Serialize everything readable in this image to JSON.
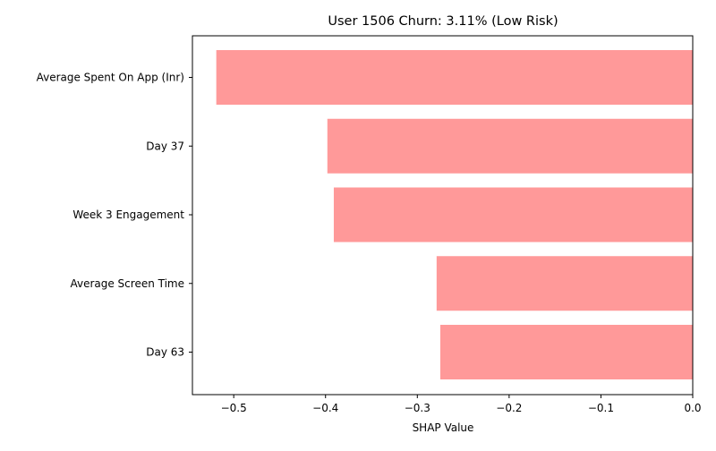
{
  "chart_data": {
    "type": "bar",
    "orientation": "horizontal",
    "title": "User 1506 Churn: 3.11% (Low Risk)",
    "xlabel": "SHAP Value",
    "ylabel": "",
    "categories": [
      "Average Spent On App (Inr)",
      "Day 37",
      "Week 3 Engagement",
      "Average Screen Time",
      "Day 63"
    ],
    "values": [
      -0.519,
      -0.398,
      -0.391,
      -0.279,
      -0.275
    ],
    "xlim": [
      -0.545,
      0.0
    ],
    "xticks": [
      -0.5,
      -0.4,
      -0.3,
      -0.2,
      -0.1,
      0.0
    ],
    "xtick_labels": [
      "−0.5",
      "−0.4",
      "−0.3",
      "−0.2",
      "−0.1",
      "0.0"
    ],
    "bar_color": "#ff9999",
    "grid": false,
    "legend": "none"
  }
}
